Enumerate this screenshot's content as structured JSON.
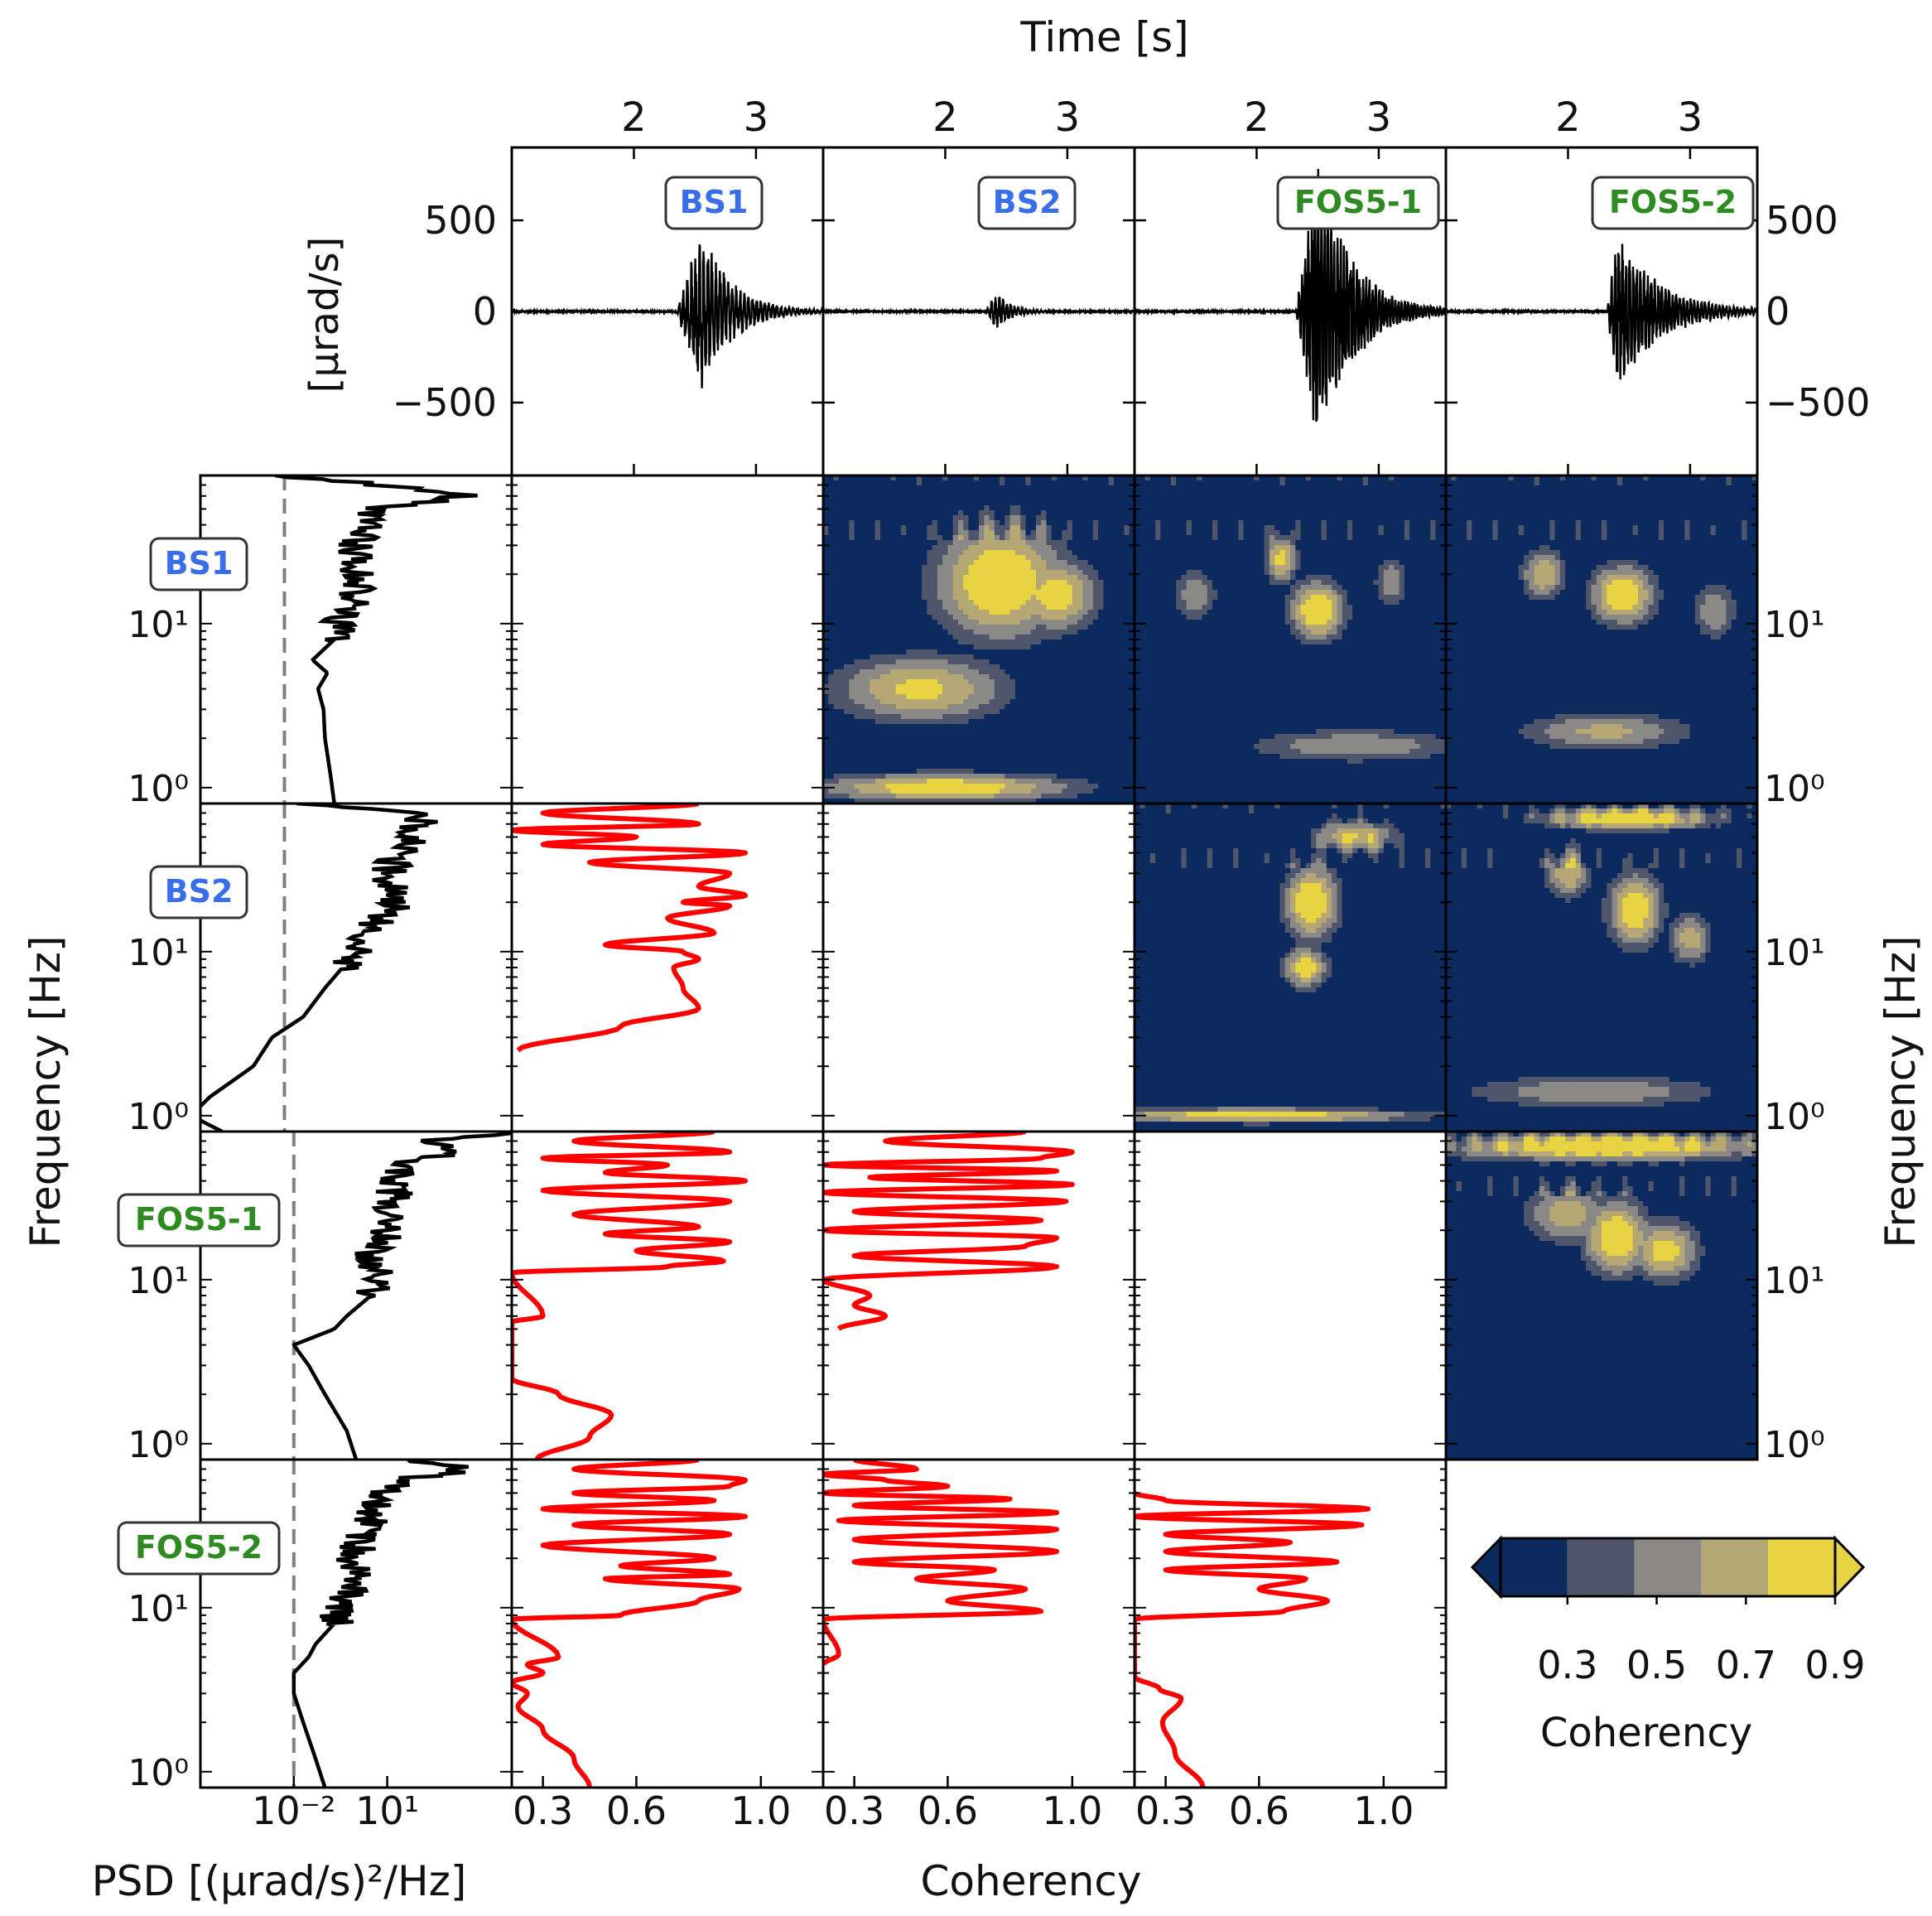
{
  "figure": {
    "time_axis_title": "Time [s]",
    "amp_axis_title": "[μrad/s]",
    "freq_axis_title": "Frequency [Hz]",
    "psd_axis_title": "PSD [(μrad/s)²/Hz]",
    "coh_axis_title": "Coherency",
    "colorbar_title": "Coherency"
  },
  "stations": [
    {
      "name": "BS1",
      "color": "#3a6ee8"
    },
    {
      "name": "BS2",
      "color": "#3a6ee8"
    },
    {
      "name": "FOS5-1",
      "color": "#2e8b22"
    },
    {
      "name": "FOS5-2",
      "color": "#2e8b22"
    }
  ],
  "colors": {
    "trace": "#000000",
    "coherency_curve": "#ff0000",
    "psd_reference_line": "#808080",
    "colormap": [
      "#0d2a5e",
      "#4f566b",
      "#8a8985",
      "#b6a874",
      "#e8d443"
    ]
  },
  "chart_data": [
    {
      "type": "line",
      "panel": "waveforms",
      "xlabel": "Time [s]",
      "ylabel": "[μrad/s]",
      "xlim": [
        1.0,
        3.55
      ],
      "ylim": [
        -900,
        900
      ],
      "x_ticks": [
        "2",
        "3"
      ],
      "y_ticks": [
        "500",
        "0",
        "−500"
      ],
      "series": [
        {
          "name": "BS1",
          "onset": 2.35,
          "peak_time": 2.55,
          "peak": 460,
          "decay": 0.25,
          "freq": 30
        },
        {
          "name": "BS2",
          "onset": 2.33,
          "peak_time": 2.42,
          "peak": 110,
          "decay": 0.12,
          "freq": 32
        },
        {
          "name": "FOS5-1",
          "onset": 2.32,
          "peak_time": 2.5,
          "peak": 850,
          "decay": 0.28,
          "freq": 38
        },
        {
          "name": "FOS5-2",
          "onset": 2.32,
          "peak_time": 2.4,
          "peak": 440,
          "decay": 0.35,
          "freq": 34
        }
      ]
    },
    {
      "type": "line",
      "panel": "psd",
      "xlabel": "PSD [(μrad/s)²/Hz]",
      "ylabel": "Frequency [Hz]",
      "xscale": "log",
      "yscale": "log",
      "xlim": [
        1e-05,
        100000.0
      ],
      "ylim": [
        0.8,
        80
      ],
      "x_ticks": [
        "10⁻²",
        "10¹"
      ],
      "y_ticks": [
        "10⁰",
        "10¹"
      ],
      "reference_line_psd": [
        0.005,
        0.005,
        0.01,
        0.01
      ],
      "series": [
        {
          "name": "BS1",
          "frequency": [
            0.8,
            1.2,
            2,
            3,
            4,
            5,
            6,
            8,
            10,
            14,
            20,
            30,
            40,
            50,
            60,
            70,
            80
          ],
          "psd": [
            0.2,
            0.15,
            0.1,
            0.09,
            0.06,
            0.12,
            0.04,
            0.2,
            0.3,
            0.8,
            1.2,
            0.9,
            2.0,
            3.0,
            4000,
            5.0,
            0.005
          ]
        },
        {
          "name": "BS2",
          "frequency": [
            0.8,
            1.0,
            1.3,
            2,
            3,
            4,
            6,
            10,
            14,
            20,
            30,
            45,
            60,
            70,
            80
          ],
          "psd": [
            5e-05,
            5e-06,
            2e-05,
            0.0005,
            0.002,
            0.02,
            0.1,
            1.0,
            3.0,
            20,
            10,
            40,
            80,
            300,
            0.02
          ]
        },
        {
          "name": "FOS5-1",
          "frequency": [
            0.8,
            1.2,
            2,
            3,
            4,
            5,
            6,
            8,
            10,
            14,
            20,
            30,
            40,
            50,
            60,
            70,
            80
          ],
          "psd": [
            1.0,
            0.5,
            0.1,
            0.03,
            0.01,
            0.2,
            0.5,
            3,
            8,
            3,
            10,
            15,
            20,
            30,
            1000,
            300,
            100000
          ]
        },
        {
          "name": "FOS5-2",
          "frequency": [
            0.8,
            1.2,
            2,
            3,
            4,
            5,
            6,
            8,
            10,
            14,
            20,
            30,
            40,
            50,
            60,
            70,
            80
          ],
          "psd": [
            0.1,
            0.05,
            0.02,
            0.01,
            0.01,
            0.03,
            0.05,
            0.2,
            0.3,
            1.0,
            0.8,
            2.0,
            4.0,
            6.0,
            30,
            5000,
            50
          ]
        }
      ]
    },
    {
      "type": "line",
      "panel": "mean_coherency",
      "xlabel": "Coherency",
      "ylabel": "Frequency [Hz]",
      "yscale": "log",
      "xlim": [
        0.2,
        1.2
      ],
      "ylim": [
        0.8,
        80
      ],
      "x_ticks": [
        "0.3",
        "0.6",
        "1.0"
      ],
      "series": [
        {
          "name": "BS2 vs BS1",
          "frequency": [
            2.5,
            3.5,
            4.5,
            6,
            8,
            9,
            10,
            11,
            13,
            16,
            19,
            20,
            22,
            25,
            30,
            35,
            40,
            45,
            50,
            55,
            60,
            70,
            80
          ],
          "coherency": [
            0.22,
            0.55,
            0.8,
            0.75,
            0.72,
            0.8,
            0.75,
            0.5,
            0.85,
            0.7,
            0.9,
            0.75,
            0.95,
            0.8,
            0.9,
            0.45,
            0.95,
            0.3,
            0.6,
            0.2,
            0.8,
            0.3,
            0.8
          ]
        },
        {
          "name": "FOS5-1 vs BS1",
          "frequency": [
            0.8,
            1.1,
            1.5,
            2.0,
            2.5,
            5.5,
            6.0,
            11,
            12,
            13,
            15,
            17,
            19,
            21,
            25,
            30,
            35,
            40,
            45,
            50,
            55,
            60,
            70,
            80
          ],
          "coherency": [
            0.28,
            0.45,
            0.52,
            0.35,
            0.2,
            0.2,
            0.3,
            0.2,
            0.7,
            0.88,
            0.6,
            0.9,
            0.5,
            0.8,
            0.4,
            0.9,
            0.3,
            0.95,
            0.5,
            0.7,
            0.3,
            0.9,
            0.4,
            0.85
          ]
        },
        {
          "name": "FOS5-1 vs BS2",
          "frequency": [
            5,
            6,
            7,
            8,
            10,
            12,
            14,
            16,
            18,
            20,
            23,
            26,
            30,
            34,
            38,
            42,
            46,
            50,
            55,
            60,
            70,
            80
          ],
          "coherency": [
            0.25,
            0.4,
            0.3,
            0.35,
            0.2,
            0.95,
            0.3,
            0.85,
            0.95,
            0.2,
            0.9,
            0.3,
            0.98,
            0.2,
            1.0,
            0.35,
            0.95,
            0.2,
            0.9,
            1.0,
            0.4,
            0.85
          ]
        },
        {
          "name": "FOS5-2 vs BS1",
          "frequency": [
            0.8,
            1.2,
            1.8,
            2.5,
            3.0,
            3.5,
            4.0,
            4.5,
            5.0,
            8.5,
            9,
            11,
            13,
            15,
            16,
            18,
            20,
            24,
            28,
            32,
            36,
            40,
            45,
            50,
            55,
            60,
            70,
            80
          ],
          "coherency": [
            0.45,
            0.4,
            0.3,
            0.22,
            0.25,
            0.2,
            0.3,
            0.25,
            0.35,
            0.2,
            0.55,
            0.8,
            0.93,
            0.5,
            0.9,
            0.55,
            0.85,
            0.3,
            0.9,
            0.4,
            0.95,
            0.3,
            0.85,
            0.4,
            0.9,
            0.95,
            0.4,
            0.8
          ]
        },
        {
          "name": "FOS5-2 vs BS2",
          "frequency": [
            4.5,
            5.2,
            8.5,
            9.5,
            11,
            13,
            15,
            17,
            19,
            22,
            26,
            30,
            34,
            38,
            42,
            46,
            50,
            55,
            60,
            65,
            70,
            80
          ],
          "coherency": [
            0.2,
            0.25,
            0.2,
            0.9,
            0.6,
            0.85,
            0.5,
            0.75,
            0.3,
            0.95,
            0.3,
            0.95,
            0.25,
            0.95,
            0.3,
            0.8,
            0.2,
            0.6,
            0.4,
            0.2,
            0.5,
            0.3
          ]
        },
        {
          "name": "FOS5-2 vs FOS5-1",
          "frequency": [
            0.8,
            1.3,
            2,
            2.8,
            3.2,
            3.8,
            8.5,
            9.5,
            11,
            13,
            15,
            17,
            19,
            22,
            25,
            28,
            32,
            36,
            40,
            45,
            50
          ],
          "coherency": [
            0.42,
            0.33,
            0.29,
            0.35,
            0.28,
            0.2,
            0.2,
            0.68,
            0.82,
            0.6,
            0.75,
            0.3,
            0.85,
            0.3,
            0.7,
            0.3,
            0.93,
            0.2,
            0.95,
            0.3,
            0.2
          ]
        }
      ]
    },
    {
      "type": "heatmap",
      "panel": "wavelet_coherence",
      "xlim": [
        1.0,
        3.55
      ],
      "ylim": [
        0.8,
        80
      ],
      "y_ticks": [
        "10⁰",
        "10¹"
      ],
      "levels": [
        0.3,
        0.45,
        0.6,
        0.75
      ],
      "pairs": [
        {
          "row": "BS1",
          "col": "BS2",
          "blobs": [
            [
              2.45,
              18,
              0.6,
              2.5,
              0.95
            ],
            [
              1.8,
              4,
              0.8,
              1.7,
              0.8
            ],
            [
              2.9,
              15,
              0.4,
              1.8,
              0.85
            ],
            [
              2.0,
              1.0,
              1.2,
              1.25,
              0.9
            ]
          ]
        },
        {
          "row": "BS1",
          "col": "FOS5-1",
          "blobs": [
            [
              2.5,
              12,
              0.25,
              1.6,
              0.95
            ],
            [
              2.2,
              25,
              0.15,
              1.5,
              0.8
            ],
            [
              2.8,
              1.8,
              1.0,
              1.3,
              0.6
            ],
            [
              1.5,
              15,
              0.2,
              1.5,
              0.6
            ],
            [
              3.1,
              18,
              0.15,
              1.5,
              0.6
            ]
          ]
        },
        {
          "row": "BS1",
          "col": "FOS5-2",
          "blobs": [
            [
              2.45,
              15,
              0.3,
              1.6,
              0.92
            ],
            [
              1.8,
              20,
              0.2,
              1.5,
              0.75
            ],
            [
              2.3,
              2.2,
              0.8,
              1.35,
              0.65
            ],
            [
              3.2,
              12,
              0.2,
              1.6,
              0.6
            ]
          ]
        },
        {
          "row": "BS2",
          "col": "FOS5-1",
          "blobs": [
            [
              2.45,
              20,
              0.25,
              1.8,
              0.95
            ],
            [
              2.4,
              8,
              0.2,
              1.4,
              0.85
            ],
            [
              2.8,
              50,
              0.4,
              1.3,
              0.8
            ],
            [
              2.0,
              1.0,
              1.5,
              1.12,
              0.9
            ]
          ]
        },
        {
          "row": "BS2",
          "col": "FOS5-2",
          "blobs": [
            [
              2.55,
              18,
              0.25,
              1.8,
              0.9
            ],
            [
              2.0,
              30,
              0.2,
              1.5,
              0.75
            ],
            [
              3.0,
              12,
              0.2,
              1.5,
              0.7
            ],
            [
              2.2,
              1.4,
              1.2,
              1.3,
              0.6
            ],
            [
              2.5,
              65,
              0.8,
              1.2,
              0.95
            ]
          ]
        },
        {
          "row": "FOS5-1",
          "col": "FOS5-2",
          "blobs": [
            [
              2.4,
              18,
              0.3,
              1.8,
              0.95
            ],
            [
              2.8,
              15,
              0.3,
              1.6,
              0.85
            ],
            [
              2.0,
              25,
              0.4,
              1.6,
              0.7
            ],
            [
              2.3,
              65,
              1.5,
              1.25,
              0.98
            ]
          ]
        }
      ]
    },
    {
      "type": "heatmap",
      "panel": "colorbar",
      "title": "Coherency",
      "ticks": [
        "0.3",
        "0.5",
        "0.7",
        "0.9"
      ],
      "boundaries": [
        0.15,
        0.3,
        0.45,
        0.6,
        0.75,
        0.9
      ],
      "extend": "both"
    }
  ]
}
